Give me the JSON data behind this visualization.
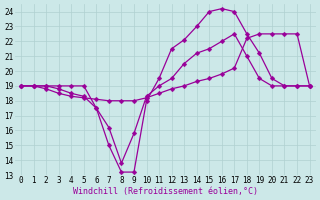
{
  "xlabel": "Windchill (Refroidissement éolien,°C)",
  "bg_color": "#cce8e8",
  "line_color": "#990099",
  "grid_color": "#b0d0d0",
  "xlim": [
    -0.5,
    23.5
  ],
  "ylim": [
    13,
    24.5
  ],
  "xticks": [
    0,
    1,
    2,
    3,
    4,
    5,
    6,
    7,
    8,
    9,
    10,
    11,
    12,
    13,
    14,
    15,
    16,
    17,
    18,
    19,
    20,
    21,
    22,
    23
  ],
  "yticks": [
    13,
    14,
    15,
    16,
    17,
    18,
    19,
    20,
    21,
    22,
    23,
    24
  ],
  "line1_x": [
    0,
    1,
    2,
    3,
    4,
    5,
    6,
    7,
    8,
    9,
    10,
    11,
    12,
    13,
    14,
    15,
    16,
    17,
    18,
    19,
    20,
    21,
    22,
    23
  ],
  "line1_y": [
    19,
    19,
    19,
    19,
    19,
    19,
    17.5,
    15.0,
    13.2,
    13.2,
    18.0,
    19.5,
    21.5,
    22.1,
    23.0,
    24.0,
    24.2,
    24.0,
    22.5,
    21.2,
    19.5,
    19.0,
    19.0,
    19.0
  ],
  "line2_x": [
    0,
    1,
    2,
    3,
    4,
    5,
    6,
    7,
    8,
    9,
    10,
    11,
    12,
    13,
    14,
    15,
    16,
    17,
    18,
    19,
    20,
    21,
    22,
    23
  ],
  "line2_y": [
    19,
    19,
    19,
    18.8,
    18.5,
    18.3,
    17.5,
    16.2,
    13.8,
    15.8,
    18.3,
    19.0,
    19.5,
    20.5,
    21.2,
    21.5,
    22.0,
    22.5,
    21.0,
    19.5,
    19.0,
    19.0,
    19.0,
    19.0
  ],
  "line3_x": [
    0,
    1,
    2,
    3,
    4,
    5,
    6,
    7,
    8,
    9,
    10,
    11,
    12,
    13,
    14,
    15,
    16,
    17,
    18,
    19,
    20,
    21,
    22,
    23
  ],
  "line3_y": [
    19,
    19,
    18.8,
    18.5,
    18.3,
    18.2,
    18.1,
    18.0,
    18.0,
    18.0,
    18.2,
    18.5,
    18.8,
    19.0,
    19.3,
    19.5,
    19.8,
    20.2,
    22.2,
    22.5,
    22.5,
    22.5,
    22.5,
    19.0
  ],
  "markersize": 2.5,
  "linewidth": 0.9,
  "xlabel_fontsize": 6,
  "tick_fontsize": 5.5
}
